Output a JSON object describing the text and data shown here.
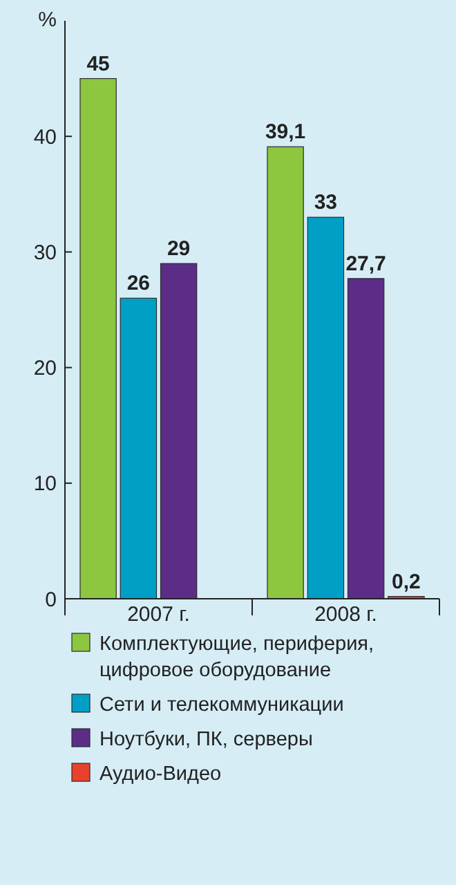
{
  "chart_data": {
    "type": "bar",
    "ylabel": "%",
    "categories": [
      "2007 г.",
      "2008 г."
    ],
    "series": [
      {
        "name": "Комплектующие, периферия, цифровое оборудование",
        "color": "#8dc63f",
        "values": [
          45,
          39.1
        ],
        "value_labels": [
          "45",
          "39,1"
        ]
      },
      {
        "name": "Сети и телекоммуникации",
        "color": "#00a0c6",
        "values": [
          26,
          33
        ],
        "value_labels": [
          "26",
          "33"
        ]
      },
      {
        "name": "Ноутбуки, ПК, серверы",
        "color": "#5b2d86",
        "values": [
          29,
          27.7
        ],
        "value_labels": [
          "29",
          "27,7"
        ]
      },
      {
        "name": "Аудио-Видео",
        "color": "#e8412c",
        "values": [
          null,
          0.2
        ],
        "value_labels": [
          null,
          "0,2"
        ]
      }
    ],
    "ylim": [
      0,
      50
    ],
    "yticks": [
      0,
      10,
      20,
      30,
      40
    ],
    "grid": false,
    "legend": "bottom"
  }
}
